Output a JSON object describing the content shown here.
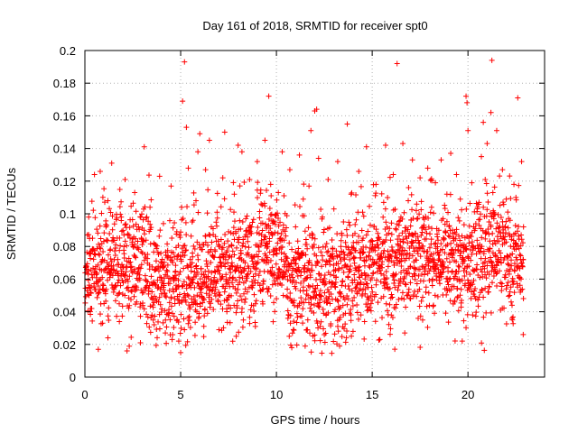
{
  "chart_data": {
    "type": "scatter",
    "title": "Day 161 of 2018, SRMTID for receiver spt0",
    "xlabel": "GPS time / hours",
    "ylabel": "SRMTID / TECUs",
    "xlim": [
      0,
      24
    ],
    "ylim": [
      0,
      0.2
    ],
    "xticks": [
      0,
      5,
      10,
      15,
      20
    ],
    "xtick_labels": [
      "0",
      "5",
      "10",
      "15",
      "20"
    ],
    "yticks": [
      0,
      0.02,
      0.04,
      0.06,
      0.08,
      0.1,
      0.12,
      0.14,
      0.16,
      0.18,
      0.2
    ],
    "ytick_labels": [
      "0",
      "0.02",
      "0.04",
      "0.06",
      "0.08",
      "0.1",
      "0.12",
      "0.14",
      "0.16",
      "0.18",
      "0.2"
    ],
    "grid": true,
    "marker": "+",
    "color": "#ff0000",
    "x_data_range": [
      0,
      22.9
    ],
    "series": [
      {
        "name": "spt0",
        "points": [
          [
            0.1,
            0.066
          ],
          [
            0.2,
            0.098
          ],
          [
            0.3,
            0.042
          ],
          [
            0.4,
            0.085
          ],
          [
            0.5,
            0.124
          ],
          [
            0.6,
            0.058
          ],
          [
            0.7,
            0.017
          ],
          [
            0.8,
            0.126
          ],
          [
            0.9,
            0.071
          ],
          [
            1.0,
            0.045
          ],
          [
            1.1,
            0.092
          ],
          [
            1.2,
            0.108
          ],
          [
            1.3,
            0.061
          ],
          [
            1.4,
            0.131
          ],
          [
            1.5,
            0.052
          ],
          [
            1.6,
            0.079
          ],
          [
            1.8,
            0.034
          ],
          [
            1.9,
            0.098
          ],
          [
            2.0,
            0.063
          ],
          [
            2.1,
            0.121
          ],
          [
            2.2,
            0.016
          ],
          [
            2.3,
            0.087
          ],
          [
            2.5,
            0.055
          ],
          [
            2.6,
            0.113
          ],
          [
            2.7,
            0.046
          ],
          [
            2.8,
            0.092
          ],
          [
            2.9,
            0.021
          ],
          [
            3.0,
            0.076
          ],
          [
            3.1,
            0.141
          ],
          [
            3.2,
            0.059
          ],
          [
            3.4,
            0.104
          ],
          [
            3.5,
            0.038
          ],
          [
            3.6,
            0.082
          ],
          [
            3.7,
            0.066
          ],
          [
            3.9,
            0.123
          ],
          [
            4.0,
            0.051
          ],
          [
            4.1,
            0.094
          ],
          [
            4.2,
            0.027
          ],
          [
            4.3,
            0.073
          ],
          [
            4.5,
            0.117
          ],
          [
            4.6,
            0.061
          ],
          [
            4.7,
            0.045
          ],
          [
            4.8,
            0.089
          ],
          [
            4.9,
            0.022
          ],
          [
            5.0,
            0.015
          ],
          [
            5.05,
            0.104
          ],
          [
            5.1,
            0.169
          ],
          [
            5.2,
            0.193
          ],
          [
            5.3,
            0.153
          ],
          [
            5.4,
            0.128
          ],
          [
            5.5,
            0.072
          ],
          [
            5.6,
            0.095
          ],
          [
            5.7,
            0.046
          ],
          [
            5.8,
            0.108
          ],
          [
            5.9,
            0.138
          ],
          [
            6.0,
            0.149
          ],
          [
            6.1,
            0.063
          ],
          [
            6.2,
            0.081
          ],
          [
            6.3,
            0.127
          ],
          [
            6.4,
            0.039
          ],
          [
            6.5,
            0.145
          ],
          [
            6.6,
            0.092
          ],
          [
            6.7,
            0.055
          ],
          [
            6.8,
            0.077
          ],
          [
            6.9,
            0.101
          ],
          [
            7.0,
            0.029
          ],
          [
            7.1,
            0.068
          ],
          [
            7.2,
            0.122
          ],
          [
            7.3,
            0.15
          ],
          [
            7.4,
            0.047
          ],
          [
            7.5,
            0.089
          ],
          [
            7.6,
            0.064
          ],
          [
            7.8,
            0.112
          ],
          [
            7.9,
            0.025
          ],
          [
            8.0,
            0.142
          ],
          [
            8.1,
            0.073
          ],
          [
            8.2,
            0.138
          ],
          [
            8.3,
            0.051
          ],
          [
            8.4,
            0.097
          ],
          [
            8.5,
            0.083
          ],
          [
            8.6,
            0.121
          ],
          [
            8.7,
            0.044
          ],
          [
            8.8,
            0.069
          ],
          [
            8.9,
            0.031
          ],
          [
            9.0,
            0.132
          ],
          [
            9.1,
            0.088
          ],
          [
            9.2,
            0.106
          ],
          [
            9.3,
            0.057
          ],
          [
            9.4,
            0.145
          ],
          [
            9.5,
            0.079
          ],
          [
            9.6,
            0.172
          ],
          [
            9.7,
            0.118
          ],
          [
            9.8,
            0.062
          ],
          [
            9.9,
            0.095
          ],
          [
            10.0,
            0.048
          ],
          [
            10.1,
            0.113
          ],
          [
            10.2,
            0.085
          ],
          [
            10.3,
            0.138
          ],
          [
            10.4,
            0.071
          ],
          [
            10.6,
            0.036
          ],
          [
            10.7,
            0.127
          ],
          [
            10.8,
            0.018
          ],
          [
            10.9,
            0.059
          ],
          [
            11.0,
            0.092
          ],
          [
            11.1,
            0.043
          ],
          [
            11.2,
            0.136
          ],
          [
            11.3,
            0.076
          ],
          [
            11.4,
            0.109
          ],
          [
            11.5,
            0.019
          ],
          [
            11.6,
            0.065
          ],
          [
            11.7,
            0.117
          ],
          [
            11.8,
            0.151
          ],
          [
            11.9,
            0.087
          ],
          [
            12.0,
            0.163
          ],
          [
            12.1,
            0.164
          ],
          [
            12.2,
            0.134
          ],
          [
            12.3,
            0.053
          ],
          [
            12.4,
            0.098
          ],
          [
            12.5,
            0.026
          ],
          [
            12.6,
            0.071
          ],
          [
            12.7,
            0.121
          ],
          [
            12.8,
            0.045
          ],
          [
            12.9,
            0.084
          ],
          [
            13.0,
            0.103
          ],
          [
            13.1,
            0.058
          ],
          [
            13.2,
            0.132
          ],
          [
            13.3,
            0.019
          ],
          [
            13.4,
            0.077
          ],
          [
            13.5,
            0.095
          ],
          [
            13.6,
            0.039
          ],
          [
            13.7,
            0.155
          ],
          [
            13.8,
            0.066
          ],
          [
            13.9,
            0.112
          ],
          [
            14.0,
            0.028
          ],
          [
            14.1,
            0.088
          ],
          [
            14.2,
            0.052
          ],
          [
            14.3,
            0.126
          ],
          [
            14.4,
            0.073
          ],
          [
            14.5,
            0.101
          ],
          [
            14.6,
            0.034
          ],
          [
            14.7,
            0.141
          ],
          [
            14.8,
            0.062
          ],
          [
            14.9,
            0.093
          ],
          [
            15.0,
            0.047
          ],
          [
            15.2,
            0.118
          ],
          [
            15.3,
            0.081
          ],
          [
            15.4,
            0.023
          ],
          [
            15.5,
            0.069
          ],
          [
            15.6,
            0.107
          ],
          [
            15.7,
            0.142
          ],
          [
            15.8,
            0.055
          ],
          [
            15.9,
            0.091
          ],
          [
            16.0,
            0.038
          ],
          [
            16.1,
            0.124
          ],
          [
            16.2,
            0.074
          ],
          [
            16.3,
            0.192
          ],
          [
            16.4,
            0.059
          ],
          [
            16.5,
            0.098
          ],
          [
            16.6,
            0.143
          ],
          [
            16.7,
            0.027
          ],
          [
            16.8,
            0.085
          ],
          [
            16.9,
            0.116
          ],
          [
            17.0,
            0.048
          ],
          [
            17.1,
            0.133
          ],
          [
            17.2,
            0.067
          ],
          [
            17.3,
            0.102
          ],
          [
            17.4,
            0.036
          ],
          [
            17.5,
            0.122
          ],
          [
            17.6,
            0.079
          ],
          [
            17.7,
            0.093
          ],
          [
            17.8,
            0.052
          ],
          [
            17.9,
            0.128
          ],
          [
            18.0,
            0.071
          ],
          [
            18.1,
            0.104
          ],
          [
            18.2,
            0.044
          ],
          [
            18.3,
            0.119
          ],
          [
            18.4,
            0.086
          ],
          [
            18.5,
            0.061
          ],
          [
            18.6,
            0.133
          ],
          [
            18.7,
            0.097
          ],
          [
            18.8,
            0.054
          ],
          [
            18.9,
            0.112
          ],
          [
            19.0,
            0.075
          ],
          [
            19.1,
            0.137
          ],
          [
            19.2,
            0.088
          ],
          [
            19.3,
            0.046
          ],
          [
            19.4,
            0.124
          ],
          [
            19.5,
            0.068
          ],
          [
            19.6,
            0.109
          ],
          [
            19.7,
            0.022
          ],
          [
            19.8,
            0.081
          ],
          [
            19.9,
            0.172
          ],
          [
            19.95,
            0.168
          ],
          [
            20.0,
            0.151
          ],
          [
            20.1,
            0.063
          ],
          [
            20.2,
            0.119
          ],
          [
            20.3,
            0.092
          ],
          [
            20.4,
            0.048
          ],
          [
            20.5,
            0.104
          ],
          [
            20.6,
            0.077
          ],
          [
            20.7,
            0.135
          ],
          [
            20.8,
            0.156
          ],
          [
            20.9,
            0.121
          ],
          [
            21.0,
            0.143
          ],
          [
            21.1,
            0.095
          ],
          [
            21.2,
            0.162
          ],
          [
            21.25,
            0.194
          ],
          [
            21.3,
            0.113
          ],
          [
            21.4,
            0.067
          ],
          [
            21.5,
            0.151
          ],
          [
            21.6,
            0.089
          ],
          [
            21.7,
            0.041
          ],
          [
            21.8,
            0.127
          ],
          [
            21.9,
            0.073
          ],
          [
            22.0,
            0.109
          ],
          [
            22.1,
            0.058
          ],
          [
            22.2,
            0.096
          ],
          [
            22.3,
            0.036
          ],
          [
            22.4,
            0.118
          ],
          [
            22.5,
            0.082
          ],
          [
            22.6,
            0.171
          ],
          [
            22.7,
            0.061
          ],
          [
            22.8,
            0.132
          ],
          [
            22.9,
            0.092
          ]
        ]
      }
    ]
  }
}
